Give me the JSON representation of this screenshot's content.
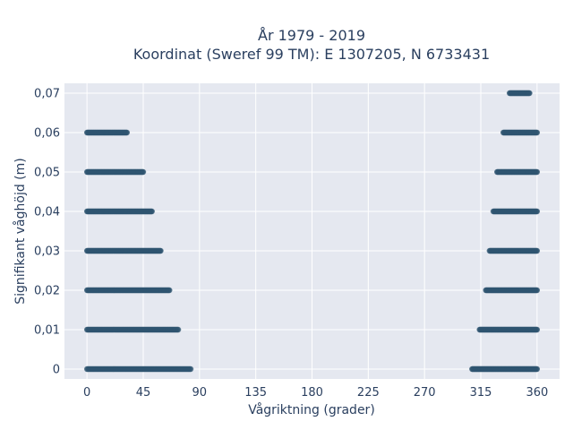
{
  "chart_data": {
    "type": "scatter",
    "title": "År 1979 - 2019",
    "subtitle": "Koordinat (Sweref 99 TM): E 1307205, N 6733431",
    "xlabel": "Vågriktning (grader)",
    "ylabel": "Signifikant våghöjd (m)",
    "xlim": [
      -18,
      378
    ],
    "ylim": [
      -0.0025,
      0.0725
    ],
    "x_ticks": [
      0,
      45,
      90,
      135,
      180,
      225,
      270,
      315,
      360
    ],
    "x_tick_labels": [
      "0",
      "45",
      "90",
      "135",
      "180",
      "225",
      "270",
      "315",
      "360"
    ],
    "y_ticks": [
      0,
      0.01,
      0.02,
      0.03,
      0.04,
      0.05,
      0.06,
      0.07
    ],
    "y_tick_labels": [
      "0",
      "0,01",
      "0,02",
      "0,03",
      "0,04",
      "0,05",
      "0,06",
      "0,07"
    ],
    "grid": true,
    "legend": "none",
    "colors": {
      "marker": "#2f5470",
      "plot_bg": "#e5e8f0",
      "grid": "#ffffff",
      "text": "#2a3f5f"
    },
    "series": [
      {
        "points_by_level": [
          {
            "y": 0.0,
            "x_ranges": [
              [
                0,
                83
              ],
              [
                308,
                360
              ]
            ]
          },
          {
            "y": 0.01,
            "x_ranges": [
              [
                0,
                73
              ],
              [
                314,
                360
              ]
            ]
          },
          {
            "y": 0.02,
            "x_ranges": [
              [
                0,
                66
              ],
              [
                319,
                360
              ]
            ]
          },
          {
            "y": 0.03,
            "x_ranges": [
              [
                0,
                59
              ],
              [
                322,
                360
              ]
            ]
          },
          {
            "y": 0.04,
            "x_ranges": [
              [
                0,
                52
              ],
              [
                325,
                360
              ]
            ]
          },
          {
            "y": 0.05,
            "x_ranges": [
              [
                0,
                45
              ],
              [
                328,
                360
              ]
            ]
          },
          {
            "y": 0.06,
            "x_ranges": [
              [
                0,
                32
              ],
              [
                333,
                360
              ]
            ]
          },
          {
            "y": 0.07,
            "x_ranges": [
              [
                338,
                354
              ]
            ]
          }
        ]
      }
    ]
  }
}
